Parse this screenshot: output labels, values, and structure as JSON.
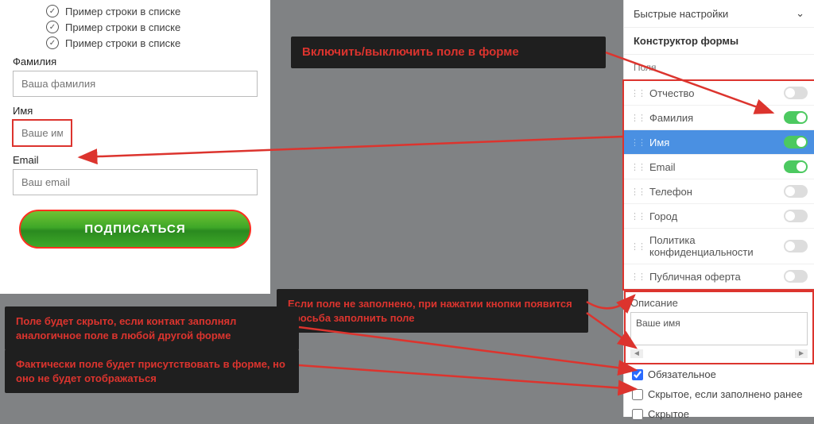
{
  "list": {
    "items": [
      "Пример строки в списке",
      "Пример строки в списке",
      "Пример строки в списке"
    ]
  },
  "form": {
    "fields": [
      {
        "label": "Фамилия",
        "placeholder": "Ваша фамилия",
        "highlighted": false
      },
      {
        "label": "Имя",
        "placeholder": "Ваше имя",
        "highlighted": true
      },
      {
        "label": "Email",
        "placeholder": "Ваш email",
        "highlighted": false
      }
    ],
    "submit_label": "ПОДПИСАТЬСЯ"
  },
  "annotations": {
    "a1": "Включить/выключить поле в форме",
    "a2": "Если поле не заполнено, при нажатии кнопки появится просьба заполнить поле",
    "a3": "Поле будет скрыто, если контакт заполнял аналогичное поле в любой другой форме",
    "a4": "Фактически поле будет присутствовать в форме, но оно не будет отображаться"
  },
  "sidebar": {
    "quick_settings": "Быстрые настройки",
    "constructor": "Конструктор формы",
    "fields_label": "Поля",
    "fields": [
      {
        "label": "Отчество",
        "on": false,
        "selected": false
      },
      {
        "label": "Фамилия",
        "on": true,
        "selected": false
      },
      {
        "label": "Имя",
        "on": true,
        "selected": true
      },
      {
        "label": "Email",
        "on": true,
        "selected": false
      },
      {
        "label": "Телефон",
        "on": false,
        "selected": false
      },
      {
        "label": "Город",
        "on": false,
        "selected": false
      },
      {
        "label": "Политика конфиденциальности",
        "on": false,
        "selected": false
      },
      {
        "label": "Публичная оферта",
        "on": false,
        "selected": false
      }
    ],
    "description_label": "Описание",
    "description_value": "Ваше имя",
    "checkboxes": [
      {
        "label": "Обязательное",
        "checked": true
      },
      {
        "label": "Скрытое, если заполнено ранее",
        "checked": false
      },
      {
        "label": "Скрытое",
        "checked": false
      }
    ]
  },
  "colors": {
    "accent_red": "#dc342e",
    "annotation_bg": "#1f1f1f",
    "toggle_on": "#4cc960",
    "selected_row": "#4a90e2",
    "btn_gradient_top": "#6fc233",
    "btn_gradient_bottom": "#2a8a1f"
  }
}
